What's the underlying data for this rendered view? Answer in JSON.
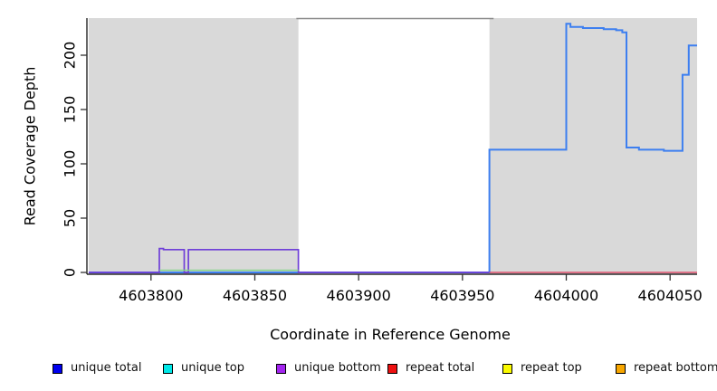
{
  "chart_data": {
    "type": "line",
    "title": "",
    "xlabel": "Coordinate in Reference Genome",
    "ylabel": "Read Coverage Depth",
    "xlim": [
      4603770,
      4604063
    ],
    "ylim": [
      0,
      234
    ],
    "x_ticks": [
      4603800,
      4603850,
      4603900,
      4603950,
      4604000,
      4604050
    ],
    "y_ticks": [
      0,
      50,
      100,
      150,
      200
    ],
    "grid": false,
    "legend_position": "bottom",
    "shaded_regions": [
      {
        "name": "repeat-region-left",
        "x0": 4603770,
        "x1": 4603871,
        "color": "#d9d9d9"
      },
      {
        "name": "repeat-region-right",
        "x0": 4603963,
        "x1": 4604063,
        "color": "#d9d9d9"
      }
    ],
    "top_border_segment": {
      "x0": 4603870,
      "x1": 4603965,
      "y": 234,
      "color": "#8a8a8a"
    },
    "series": [
      {
        "name": "unique total",
        "color": "#3d7ff0",
        "width": 2,
        "points": [
          [
            4603770,
            0
          ],
          [
            4603963,
            0
          ],
          [
            4603963,
            113
          ],
          [
            4604000,
            113
          ],
          [
            4604000,
            229
          ],
          [
            4604002,
            229
          ],
          [
            4604002,
            226
          ],
          [
            4604008,
            226
          ],
          [
            4604008,
            225
          ],
          [
            4604018,
            225
          ],
          [
            4604018,
            224
          ],
          [
            4604024,
            224
          ],
          [
            4604024,
            223
          ],
          [
            4604027,
            223
          ],
          [
            4604027,
            221
          ],
          [
            4604029,
            221
          ],
          [
            4604029,
            115
          ],
          [
            4604035,
            115
          ],
          [
            4604035,
            113
          ],
          [
            4604047,
            113
          ],
          [
            4604047,
            112
          ],
          [
            4604056,
            112
          ],
          [
            4604056,
            182
          ],
          [
            4604059,
            182
          ],
          [
            4604059,
            209
          ],
          [
            4604063,
            209
          ]
        ]
      },
      {
        "name": "unique bottom",
        "color": "#6f3fd8",
        "width": 1.7,
        "points": [
          [
            4603770,
            0
          ],
          [
            4603804,
            0
          ],
          [
            4603804,
            22
          ],
          [
            4603806,
            22
          ],
          [
            4603806,
            21
          ],
          [
            4603816,
            21
          ],
          [
            4603816,
            0
          ],
          [
            4603818,
            0
          ],
          [
            4603818,
            21
          ],
          [
            4603871,
            21
          ],
          [
            4603871,
            0
          ],
          [
            4603963,
            0
          ]
        ]
      },
      {
        "name": "green overlap segment",
        "color": "#80d583",
        "width": 1.4,
        "points": [
          [
            4603804,
            2
          ],
          [
            4603871,
            2
          ]
        ]
      },
      {
        "name": "repeat total",
        "color": "#e0506e",
        "width": 1.6,
        "points": [
          [
            4603963,
            0
          ],
          [
            4604063,
            0
          ]
        ]
      }
    ]
  },
  "axes": {
    "x_title": "Coordinate in Reference Genome",
    "y_title": "Read Coverage Depth"
  },
  "legend": {
    "items": [
      {
        "label": "unique total",
        "color": "#0000ee"
      },
      {
        "label": "unique top",
        "color": "#00e8e8"
      },
      {
        "label": "unique bottom",
        "color": "#a325f0"
      },
      {
        "label": "repeat total",
        "color": "#ee1111"
      },
      {
        "label": "repeat top",
        "color": "#fafa00"
      },
      {
        "label": "repeat bottom",
        "color": "#f7a600"
      }
    ],
    "item_x": [
      58,
      180,
      305,
      428,
      555,
      680
    ]
  }
}
